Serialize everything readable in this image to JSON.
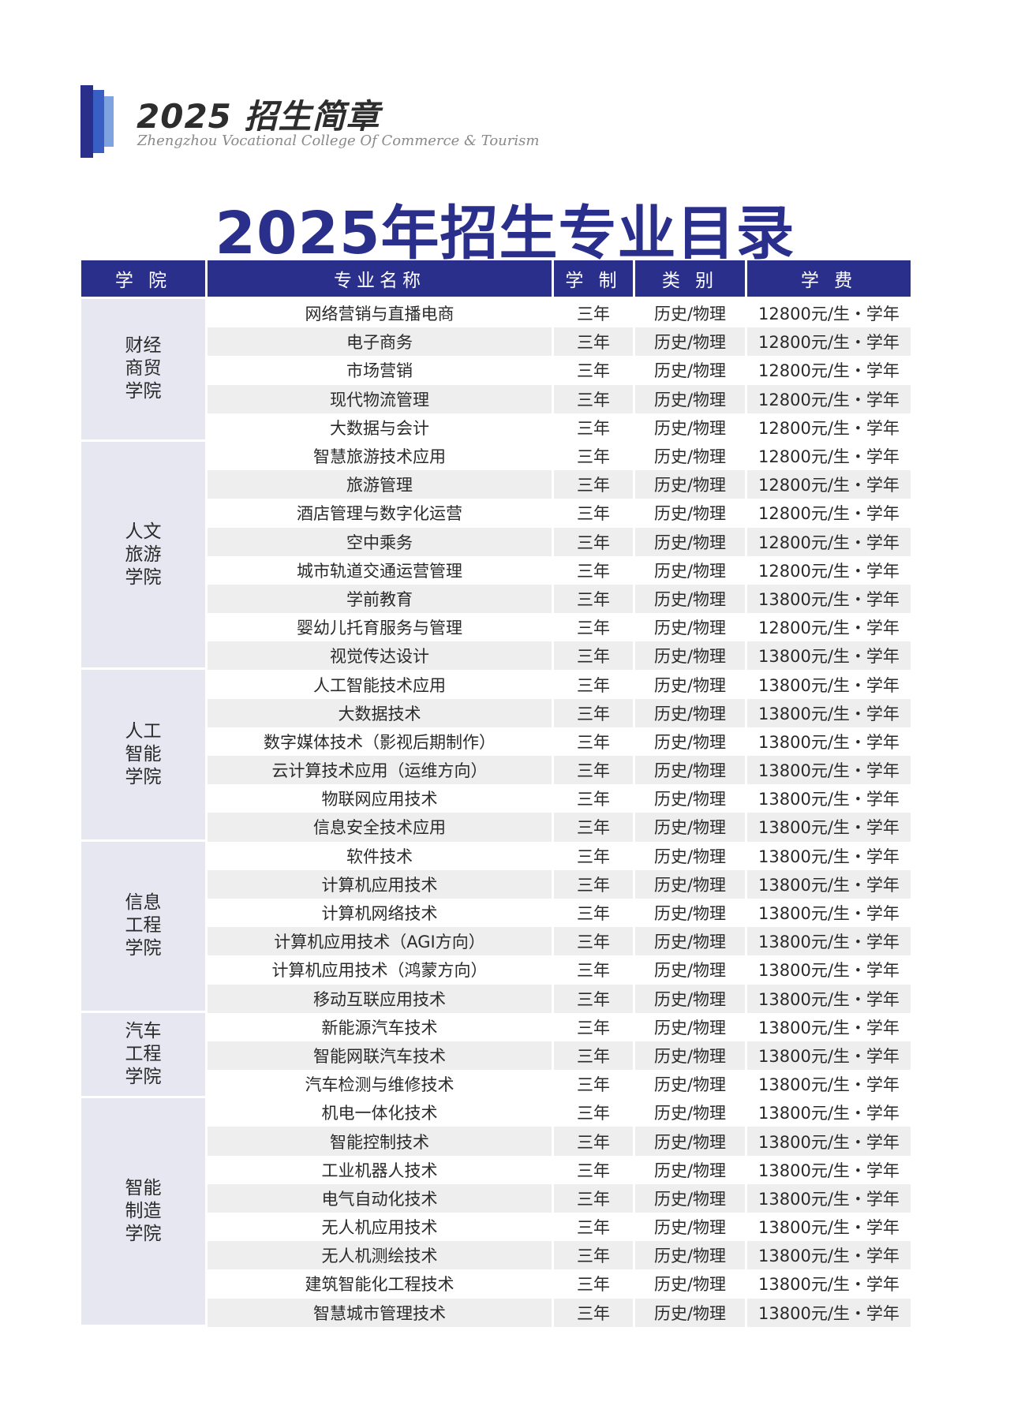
{
  "brand": {
    "title": "2025 招生简章",
    "subtitle": "Zhengzhou Vocational College Of Commerce & Tourism"
  },
  "page_title": "2025年招生专业目录",
  "table": {
    "headers": [
      "学 院",
      "专业名称",
      "学 制",
      "类 别",
      "学 费"
    ],
    "groups": [
      {
        "college": "财经商贸学院",
        "rows": [
          [
            "网络营销与直播电商",
            "三年",
            "历史/物理",
            "12800元/生・学年"
          ],
          [
            "电子商务",
            "三年",
            "历史/物理",
            "12800元/生・学年"
          ],
          [
            "市场营销",
            "三年",
            "历史/物理",
            "12800元/生・学年"
          ],
          [
            "现代物流管理",
            "三年",
            "历史/物理",
            "12800元/生・学年"
          ],
          [
            "大数据与会计",
            "三年",
            "历史/物理",
            "12800元/生・学年"
          ]
        ]
      },
      {
        "college": "人文旅游学院",
        "rows": [
          [
            "智慧旅游技术应用",
            "三年",
            "历史/物理",
            "12800元/生・学年"
          ],
          [
            "旅游管理",
            "三年",
            "历史/物理",
            "12800元/生・学年"
          ],
          [
            "酒店管理与数字化运营",
            "三年",
            "历史/物理",
            "12800元/生・学年"
          ],
          [
            "空中乘务",
            "三年",
            "历史/物理",
            "12800元/生・学年"
          ],
          [
            "城市轨道交通运营管理",
            "三年",
            "历史/物理",
            "12800元/生・学年"
          ],
          [
            "学前教育",
            "三年",
            "历史/物理",
            "13800元/生・学年"
          ],
          [
            "婴幼儿托育服务与管理",
            "三年",
            "历史/物理",
            "12800元/生・学年"
          ],
          [
            "视觉传达设计",
            "三年",
            "历史/物理",
            "13800元/生・学年"
          ]
        ]
      },
      {
        "college": "人工智能学院",
        "rows": [
          [
            "人工智能技术应用",
            "三年",
            "历史/物理",
            "13800元/生・学年"
          ],
          [
            "大数据技术",
            "三年",
            "历史/物理",
            "13800元/生・学年"
          ],
          [
            "数字媒体技术（影视后期制作）",
            "三年",
            "历史/物理",
            "13800元/生・学年"
          ],
          [
            "云计算技术应用（运维方向）",
            "三年",
            "历史/物理",
            "13800元/生・学年"
          ],
          [
            "物联网应用技术",
            "三年",
            "历史/物理",
            "13800元/生・学年"
          ],
          [
            "信息安全技术应用",
            "三年",
            "历史/物理",
            "13800元/生・学年"
          ]
        ]
      },
      {
        "college": "信息工程学院",
        "rows": [
          [
            "软件技术",
            "三年",
            "历史/物理",
            "13800元/生・学年"
          ],
          [
            "计算机应用技术",
            "三年",
            "历史/物理",
            "13800元/生・学年"
          ],
          [
            "计算机网络技术",
            "三年",
            "历史/物理",
            "13800元/生・学年"
          ],
          [
            "计算机应用技术（AGI方向）",
            "三年",
            "历史/物理",
            "13800元/生・学年"
          ],
          [
            "计算机应用技术（鸿蒙方向）",
            "三年",
            "历史/物理",
            "13800元/生・学年"
          ],
          [
            "移动互联应用技术",
            "三年",
            "历史/物理",
            "13800元/生・学年"
          ]
        ]
      },
      {
        "college": "汽车工程学院",
        "rows": [
          [
            "新能源汽车技术",
            "三年",
            "历史/物理",
            "13800元/生・学年"
          ],
          [
            "智能网联汽车技术",
            "三年",
            "历史/物理",
            "13800元/生・学年"
          ],
          [
            "汽车检测与维修技术",
            "三年",
            "历史/物理",
            "13800元/生・学年"
          ]
        ]
      },
      {
        "college": "智能制造学院",
        "rows": [
          [
            "机电一体化技术",
            "三年",
            "历史/物理",
            "13800元/生・学年"
          ],
          [
            "智能控制技术",
            "三年",
            "历史/物理",
            "13800元/生・学年"
          ],
          [
            "工业机器人技术",
            "三年",
            "历史/物理",
            "13800元/生・学年"
          ],
          [
            "电气自动化技术",
            "三年",
            "历史/物理",
            "13800元/生・学年"
          ],
          [
            "无人机应用技术",
            "三年",
            "历史/物理",
            "13800元/生・学年"
          ],
          [
            "无人机测绘技术",
            "三年",
            "历史/物理",
            "13800元/生・学年"
          ],
          [
            "建筑智能化工程技术",
            "三年",
            "历史/物理",
            "13800元/生・学年"
          ],
          [
            "智慧城市管理技术",
            "三年",
            "历史/物理",
            "13800元/生・学年"
          ]
        ]
      }
    ]
  }
}
